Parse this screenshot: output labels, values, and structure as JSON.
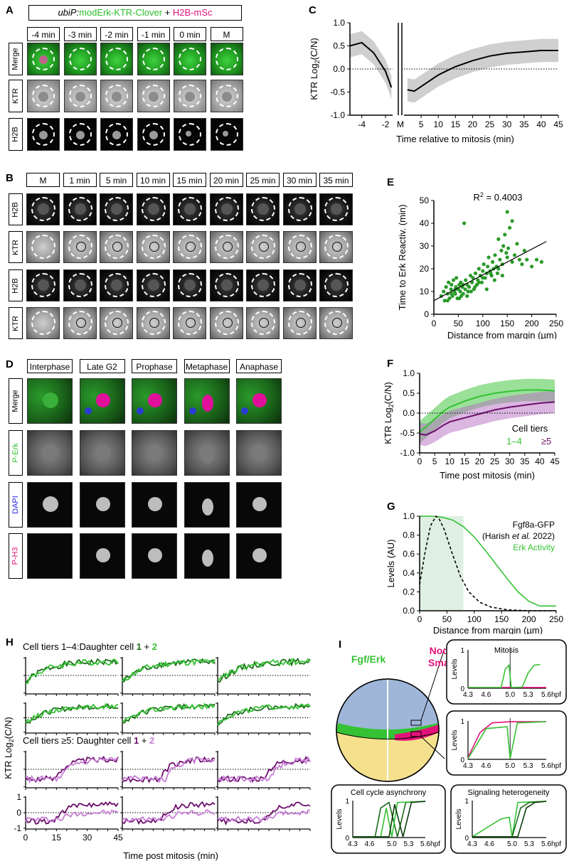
{
  "panels": {
    "A": "A",
    "B": "B",
    "C": "C",
    "D": "D",
    "E": "E",
    "F": "F",
    "G": "G",
    "H": "H",
    "I": "I"
  },
  "panelA": {
    "legend_reporter": "ubiP:",
    "legend_reporter_rest": "modErk-KTR-Clover",
    "legend_plus": " + ",
    "legend_h2b": "H2B-mSc",
    "columns": [
      "-4 min",
      "-3 min",
      "-2 min",
      "-1 min",
      "0 min",
      "M"
    ],
    "rows": [
      "Merge",
      "KTR",
      "H2B"
    ]
  },
  "panelB": {
    "columns": [
      "M",
      "1 min",
      "5 min",
      "10 min",
      "15 min",
      "20 min",
      "25 min",
      "30 min",
      "35 min"
    ],
    "rows": [
      "H2B",
      "KTR",
      "H2B",
      "KTR"
    ]
  },
  "panelD": {
    "columns": [
      "Interphase",
      "Late G2",
      "Prophase",
      "Metaphase",
      "Anaphase"
    ],
    "rows": [
      "Merge",
      "P-Erk",
      "DAPI",
      "P-H3"
    ]
  },
  "panelC": {
    "ylabel_main": "KTR Log",
    "ylabel_sub": "2",
    "ylabel_end": "(C/N)",
    "xlabel": "Time relative to mitosis (min)",
    "yticks": [
      "1.0",
      "0.5",
      "0.0",
      "-0.5",
      "-1.0"
    ],
    "xticks_left": [
      "-4",
      "-2"
    ],
    "xtick_m": "M",
    "xticks_right": [
      "5",
      "10",
      "15",
      "20",
      "25",
      "30",
      "35",
      "40",
      "45"
    ]
  },
  "panelE": {
    "annotation": "R",
    "annotation_sup": "2",
    "annotation_val": " = 0.4003",
    "ylabel": "Time to Erk Reactiv. (min)",
    "xlabel": "Distance from margin (µm)",
    "yticks": [
      "50",
      "40",
      "30",
      "20",
      "10",
      "0"
    ],
    "xticks": [
      "0",
      "50",
      "100",
      "150",
      "200",
      "250"
    ]
  },
  "panelF": {
    "ylabel_main": "KTR Log",
    "ylabel_sub": "2",
    "ylabel_end": "(C/N)",
    "xlabel": "Time post mitosis (min)",
    "legend_title": "Cell tiers",
    "legend_a": "1–4",
    "legend_b": "≥5",
    "yticks": [
      "1.0",
      "0.5",
      "0.0",
      "-0.5",
      "-1.0"
    ],
    "xticks": [
      "0",
      "5",
      "10",
      "15",
      "20",
      "25",
      "30",
      "35",
      "40",
      "45"
    ]
  },
  "panelG": {
    "ylabel": "Levels (AU)",
    "xlabel": "Distance from margin (µm)",
    "legend_fgf": "Fgf8a-GFP",
    "legend_ref_a": "(Harish ",
    "legend_ref_b": "et al.",
    "legend_ref_c": " 2022)",
    "legend_erk": "Erk Activity",
    "yticks": [
      "1.0",
      "0.8",
      "0.6",
      "0.4",
      "0.2",
      "0.0"
    ],
    "xticks": [
      "0",
      "50",
      "100",
      "150",
      "200",
      "250"
    ]
  },
  "panelH": {
    "title_top_a": "Cell tiers 1–4:Daughter cell ",
    "title_top_b": "1",
    "title_top_c": " + ",
    "title_top_d": "2",
    "title_bot_a": "Cell tiers ≥5: Daughter cell ",
    "title_bot_b": "1",
    "title_bot_c": " + ",
    "title_bot_d": "2",
    "ylabel": "KTR Log",
    "ylabel_sub": "2",
    "ylabel_end": "(C/N)",
    "xlabel": "Time post mitosis (min)",
    "yticks": [
      "1",
      "0",
      "-1"
    ],
    "xticks": [
      "0",
      "15",
      "30",
      "45"
    ]
  },
  "panelI": {
    "label_fgf": "Fgf/Erk",
    "label_nodal_a": "Nodal/",
    "label_nodal_b": "Smad2",
    "mitosis": "Mitosis",
    "levels": "Levels",
    "hpf": "hpf",
    "xticks": [
      "4.3",
      "4.6",
      "5.0",
      "5.3",
      "5.6"
    ],
    "yticks": [
      "1",
      "0"
    ],
    "box_async": "Cell cycle asynchrony",
    "box_hetero": "Signaling heterogeneity"
  },
  "colors": {
    "green": "#35c234",
    "darkgreen": "#1a6b1a",
    "magenta": "#e3127a",
    "purple": "#6b0f6b",
    "lightpurple": "#c77dd6",
    "grey": "#c8c8c8"
  },
  "chart_data": [
    {
      "type": "line",
      "panel": "C",
      "x_left": [
        -5,
        -4,
        -3,
        -2,
        -1.5
      ],
      "y_left": [
        0.5,
        0.57,
        0.35,
        -0.05,
        -0.4
      ],
      "x_right": [
        1,
        3,
        5,
        7,
        10,
        13,
        15,
        20,
        25,
        30,
        35,
        40,
        45
      ],
      "y_right": [
        -0.45,
        -0.48,
        -0.38,
        -0.28,
        -0.13,
        -0.02,
        0.05,
        0.18,
        0.28,
        0.34,
        0.37,
        0.4,
        0.4
      ],
      "band_half_width": 0.25,
      "ylim": [
        -1,
        1
      ]
    },
    {
      "type": "scatter",
      "panel": "E",
      "xlim": [
        0,
        250
      ],
      "ylim": [
        0,
        50
      ],
      "fit": {
        "x": [
          0,
          230
        ],
        "y": [
          6,
          32
        ]
      },
      "x": [
        15,
        20,
        22,
        25,
        28,
        30,
        32,
        35,
        36,
        38,
        40,
        42,
        44,
        45,
        46,
        48,
        50,
        52,
        54,
        55,
        56,
        58,
        60,
        62,
        64,
        65,
        68,
        70,
        72,
        75,
        78,
        80,
        82,
        85,
        88,
        90,
        92,
        95,
        98,
        100,
        102,
        105,
        108,
        110,
        112,
        115,
        118,
        120,
        122,
        125,
        128,
        130,
        132,
        135,
        138,
        140,
        142,
        145,
        148,
        150,
        152,
        155,
        160,
        165,
        170,
        175,
        180,
        185,
        190,
        200,
        210,
        220,
        28,
        36,
        44,
        52,
        60,
        68,
        76,
        84,
        92,
        100,
        108,
        116,
        124,
        132,
        140,
        150,
        160
      ],
      "y": [
        8,
        10,
        6,
        12,
        9,
        14,
        7,
        11,
        13,
        8,
        15,
        10,
        9,
        12,
        16,
        7,
        11,
        13,
        10,
        14,
        8,
        12,
        9,
        40,
        11,
        15,
        13,
        10,
        12,
        17,
        14,
        16,
        11,
        18,
        13,
        15,
        20,
        17,
        14,
        19,
        22,
        16,
        18,
        21,
        25,
        19,
        17,
        23,
        20,
        26,
        21,
        18,
        33,
        24,
        28,
        22,
        30,
        35,
        27,
        45,
        29,
        38,
        41,
        26,
        31,
        24,
        22,
        28,
        24,
        21,
        24,
        23,
        6,
        9,
        11,
        7,
        13,
        8,
        10,
        12,
        14,
        16,
        11,
        18,
        15,
        20,
        17,
        25,
        23
      ]
    },
    {
      "type": "line",
      "panel": "F",
      "xlim": [
        0,
        45
      ],
      "ylim": [
        -1,
        1
      ],
      "series": [
        {
          "name": "1–4",
          "x": [
            0,
            2,
            5,
            8,
            10,
            15,
            20,
            25,
            30,
            35,
            40,
            45
          ],
          "y": [
            -0.48,
            -0.35,
            -0.15,
            0.05,
            0.15,
            0.3,
            0.42,
            0.5,
            0.55,
            0.58,
            0.58,
            0.56
          ],
          "band": 0.28
        },
        {
          "name": "≥5",
          "x": [
            0,
            2,
            5,
            8,
            10,
            15,
            20,
            25,
            30,
            35,
            40,
            45
          ],
          "y": [
            -0.52,
            -0.55,
            -0.45,
            -0.3,
            -0.22,
            -0.12,
            -0.02,
            0.08,
            0.15,
            0.2,
            0.25,
            0.28
          ],
          "band": 0.28
        }
      ]
    },
    {
      "type": "line",
      "panel": "G",
      "xlim": [
        0,
        250
      ],
      "ylim": [
        0,
        1
      ],
      "shade": [
        0,
        80
      ],
      "series": [
        {
          "name": "Fgf8a-GFP",
          "x": [
            0,
            10,
            20,
            30,
            35,
            45,
            60,
            75,
            90,
            110,
            130,
            160,
            200,
            250
          ],
          "y": [
            0.28,
            0.62,
            0.9,
            1.0,
            0.98,
            0.86,
            0.6,
            0.36,
            0.2,
            0.09,
            0.04,
            0.01,
            0.0,
            0.0
          ]
        },
        {
          "name": "Erk Activity",
          "x": [
            0,
            20,
            40,
            60,
            80,
            100,
            120,
            140,
            160,
            180,
            200,
            220,
            240,
            250
          ],
          "y": [
            1.0,
            1.0,
            0.99,
            0.96,
            0.89,
            0.78,
            0.64,
            0.49,
            0.34,
            0.2,
            0.1,
            0.05,
            0.05,
            0.05
          ]
        }
      ]
    }
  ]
}
